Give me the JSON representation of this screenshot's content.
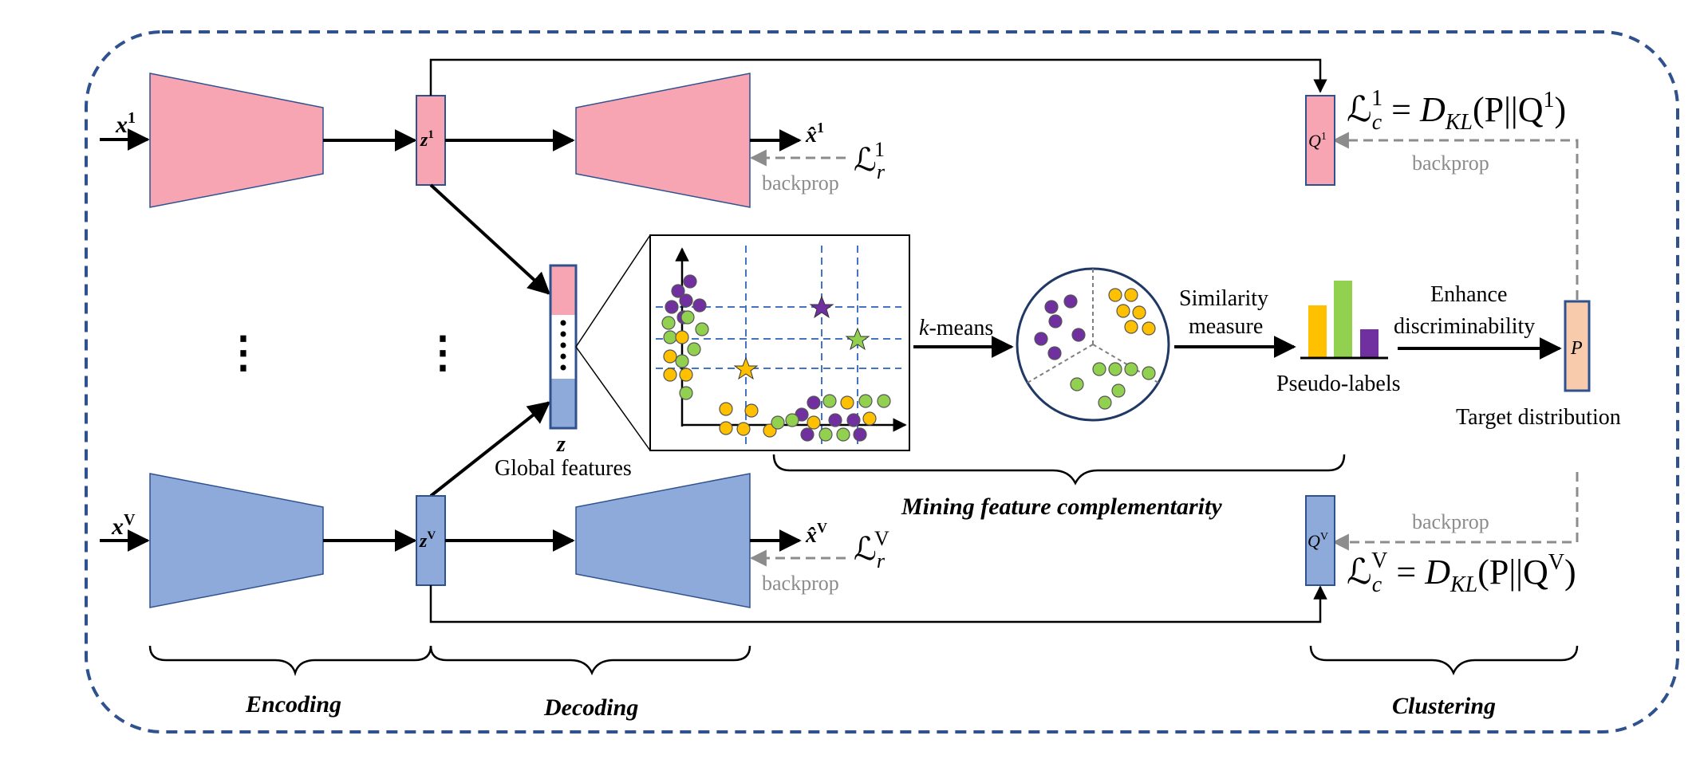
{
  "inputs": {
    "top": "x",
    "top_sup": "1",
    "bottom": "x",
    "bottom_sup": "V"
  },
  "latent": {
    "top": "z",
    "top_sup": "1",
    "bottom": "z",
    "bottom_sup": "V"
  },
  "recon": {
    "top": "x̂",
    "top_sup": "1",
    "bottom": "x̂",
    "bottom_sup": "V"
  },
  "recon_loss": {
    "top": {
      "sym": "ℒ",
      "sub": "r",
      "sup": "1"
    },
    "bottom": {
      "sym": "ℒ",
      "sub": "r",
      "sup": "V"
    }
  },
  "backprop": "backprop",
  "ellipsis": "⋮",
  "global": {
    "symbol": "z",
    "caption": "Global features"
  },
  "kmeans": {
    "italic": "k",
    "rest": "-means"
  },
  "similarity": {
    "line1": "Similarity",
    "line2": "measure"
  },
  "pseudo_labels": "Pseudo-labels",
  "enhance": {
    "line1": "Enhance",
    "line2": "discriminability"
  },
  "target": {
    "symbol": "P",
    "caption": "Target distribution"
  },
  "q_top": {
    "sym": "Q",
    "sup": "1"
  },
  "q_bottom": {
    "sym": "Q",
    "sup": "V"
  },
  "cluster_loss": {
    "top": {
      "sym": "ℒ",
      "sub": "c",
      "sup": "1",
      "eq": " = ",
      "D": "D",
      "dsub": "KL",
      "arg": "(P||Q",
      "argsup": "1",
      "close": ")"
    },
    "bottom": {
      "sym": "ℒ",
      "sub": "c",
      "sup": "V",
      "eq": " = ",
      "D": "D",
      "dsub": "KL",
      "arg": "(P||Q",
      "argsup": "V",
      "close": ")"
    }
  },
  "sections": {
    "encoding": "Encoding",
    "decoding": "Decoding",
    "mining": "Mining feature complementarity",
    "clustering": "Clustering"
  },
  "colors": {
    "view1": "#f7a5b3",
    "viewV": "#8eaadb",
    "border": "#2f528f",
    "target": "#f8cbad",
    "purple": "#7030a0",
    "green": "#92d050",
    "yellow": "#ffc000",
    "grid": "#4472c4"
  }
}
